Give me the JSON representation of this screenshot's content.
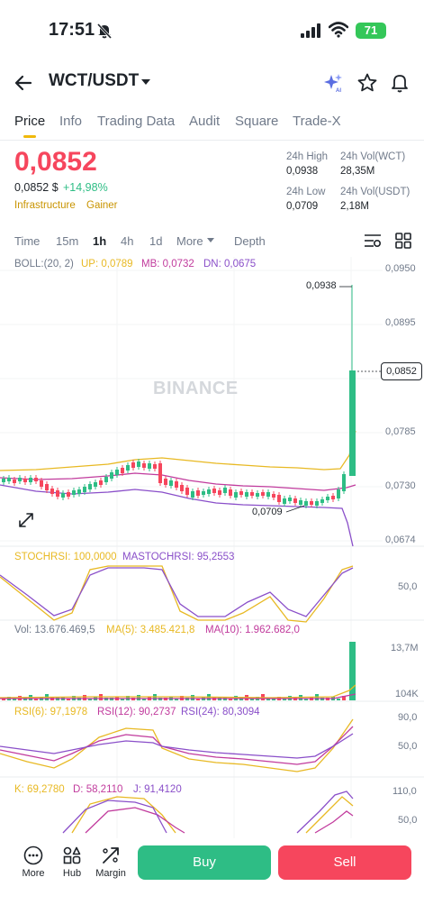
{
  "status_bar": {
    "time": "17:51",
    "battery": "71"
  },
  "header": {
    "pair": "WCT/USDT"
  },
  "tabs": [
    "Price",
    "Info",
    "Trading Data",
    "Audit",
    "Square",
    "Trade-X"
  ],
  "price": {
    "last": "0,0852",
    "usd": "0,0852 $",
    "change": "+14,98%",
    "tags": [
      "Infrastructure",
      "Gainer"
    ]
  },
  "stats": {
    "high_label": "24h High",
    "high": "0,0938",
    "vol_base_label": "24h Vol(WCT)",
    "vol_base": "28,35M",
    "low_label": "24h Low",
    "low": "0,0709",
    "vol_quote_label": "24h Vol(USDT)",
    "vol_quote": "2,18M"
  },
  "intervals": [
    "Time",
    "15m",
    "1h",
    "4h",
    "1d",
    "More",
    "Depth"
  ],
  "active_interval": "1h",
  "chart": {
    "boll": "BOLL:(20, 2)",
    "up": "UP: 0,0789",
    "mb": "MB: 0,0732",
    "dn": "DN: 0,0675",
    "price_axis": [
      "0,0950",
      "0,0895",
      "0,0785",
      "0,0730",
      "0,0674"
    ],
    "current_price_tag": "0,0852",
    "high_label": "0,0938",
    "low_label": "0,0709",
    "watermark": "BINANCE",
    "stoch": {
      "k": "STOCHRSI: 100,0000",
      "ma": "MASTOCHRSI: 95,2553",
      "axis": "50,0"
    },
    "vol": {
      "vol": "Vol: 13.676.469,5",
      "ma5": "MA(5): 3.485.421,8",
      "ma10": "MA(10): 1.962.682,0",
      "axis_top": "13,7M",
      "axis_bottom": "104K"
    },
    "rsi": {
      "r6": "RSI(6): 97,1978",
      "r12": "RSI(12): 90,2737",
      "r24": "RSI(24): 80,3094",
      "axis_top": "90,0",
      "axis_mid": "50,0"
    },
    "kdj": {
      "k": "K: 69,2780",
      "d": "D: 58,2110",
      "j": "J: 91,4120",
      "axis_top": "110,0",
      "axis_mid": "50,0"
    }
  },
  "bottom_nav": {
    "more": "More",
    "hub": "Hub",
    "margin": "Margin",
    "buy": "Buy",
    "sell": "Sell"
  },
  "colors": {
    "up": "#2ebd85",
    "down": "#f6465d",
    "accent": "#f0b90b",
    "boll_up": "#e8b923",
    "boll_mb": "#c13b9d",
    "boll_dn": "#8a4fc9"
  }
}
